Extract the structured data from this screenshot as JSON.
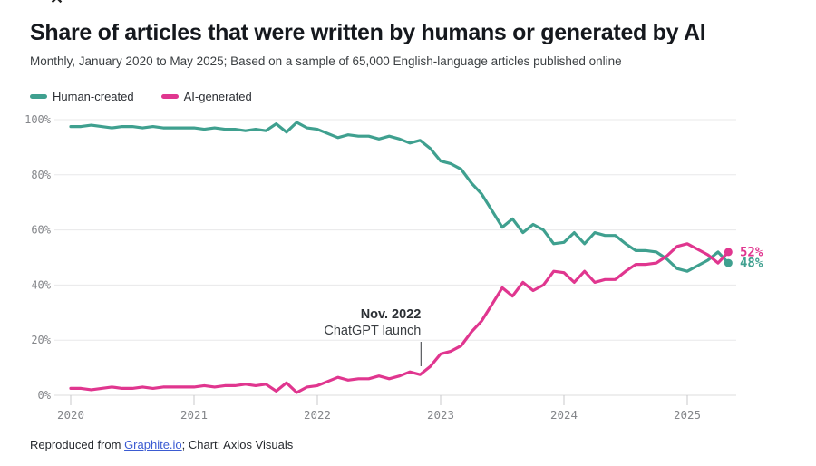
{
  "page": {
    "close_glyph": "✕"
  },
  "header": {
    "title": "Share of articles that were written by humans or generated by AI",
    "subtitle": "Monthly, January 2020 to May 2025; Based on a sample of 65,000 English-language articles published online"
  },
  "legend": {
    "items": [
      {
        "label": "Human-created",
        "color": "#3fa08f"
      },
      {
        "label": "AI-generated",
        "color": "#e0368f"
      }
    ]
  },
  "colors": {
    "human": "#3fa08f",
    "ai": "#e0368f",
    "grid": "#e8e8ea",
    "axis_line": "#dcdcde",
    "tick": "#c8c8cb",
    "axis_text": "#84868a",
    "annotation_title": "#2a2e33",
    "annotation_text": "#3a3e42",
    "annotation_line": "#55585c",
    "link": "#3b5bd2"
  },
  "chart_data": {
    "type": "line",
    "title": "Share of articles that were written by humans or generated by AI",
    "subtitle": "Monthly, January 2020 to May 2025; Based on a sample of 65,000 English-language articles published online",
    "x_unit": "month",
    "x_start": "2020-01",
    "x_end": "2025-05",
    "x_tick_labels": [
      "2020",
      "2021",
      "2022",
      "2023",
      "2024",
      "2025"
    ],
    "y_tick_labels": [
      "0%",
      "20%",
      "40%",
      "60%",
      "80%",
      "100%"
    ],
    "y_ticks": [
      0,
      20,
      40,
      60,
      80,
      100
    ],
    "ylim": [
      0,
      100
    ],
    "ylabel": "",
    "xlabel": "",
    "grid": "horizontal",
    "legend_position": "top-left",
    "series": [
      {
        "name": "Human-created",
        "color": "#3fa08f",
        "values": [
          97.5,
          97.5,
          98,
          97.5,
          97,
          97.5,
          97.5,
          97,
          97.5,
          97,
          97,
          97,
          97,
          96.5,
          97,
          96.5,
          96.5,
          96,
          96.5,
          96,
          98.5,
          95.5,
          99,
          97,
          96.5,
          95,
          93.5,
          94.5,
          94,
          94,
          93,
          94,
          93,
          91.5,
          92.5,
          89.5,
          85,
          84,
          82,
          77,
          73,
          67,
          61,
          64,
          59,
          62,
          60,
          55,
          55.5,
          59,
          55,
          59,
          58,
          58,
          55,
          52.5,
          52.5,
          52,
          49.5,
          46,
          45,
          47,
          49,
          52,
          48
        ]
      },
      {
        "name": "AI-generated",
        "color": "#e0368f",
        "values": [
          2.5,
          2.5,
          2,
          2.5,
          3,
          2.5,
          2.5,
          3,
          2.5,
          3,
          3,
          3,
          3,
          3.5,
          3,
          3.5,
          3.5,
          4,
          3.5,
          4,
          1.5,
          4.5,
          1,
          3,
          3.5,
          5,
          6.5,
          5.5,
          6,
          6,
          7,
          6,
          7,
          8.5,
          7.5,
          10.5,
          15,
          16,
          18,
          23,
          27,
          33,
          39,
          36,
          41,
          38,
          40,
          45,
          44.5,
          41,
          45,
          41,
          42,
          42,
          45,
          47.5,
          47.5,
          48,
          50.5,
          54,
          55,
          53,
          51,
          48,
          52
        ]
      }
    ],
    "end_labels": [
      {
        "text": "52%",
        "value": 52,
        "series": "AI-generated",
        "color": "#e0368f"
      },
      {
        "text": "48%",
        "value": 48,
        "series": "Human-created",
        "color": "#3fa08f"
      }
    ],
    "annotation": {
      "line1": "Nov. 2022",
      "line2": "ChatGPT launch",
      "month_index": 34
    }
  },
  "footer": {
    "prefix": "Reproduced from ",
    "link_text": "Graphite.io",
    "suffix": "; Chart: Axios Visuals"
  }
}
